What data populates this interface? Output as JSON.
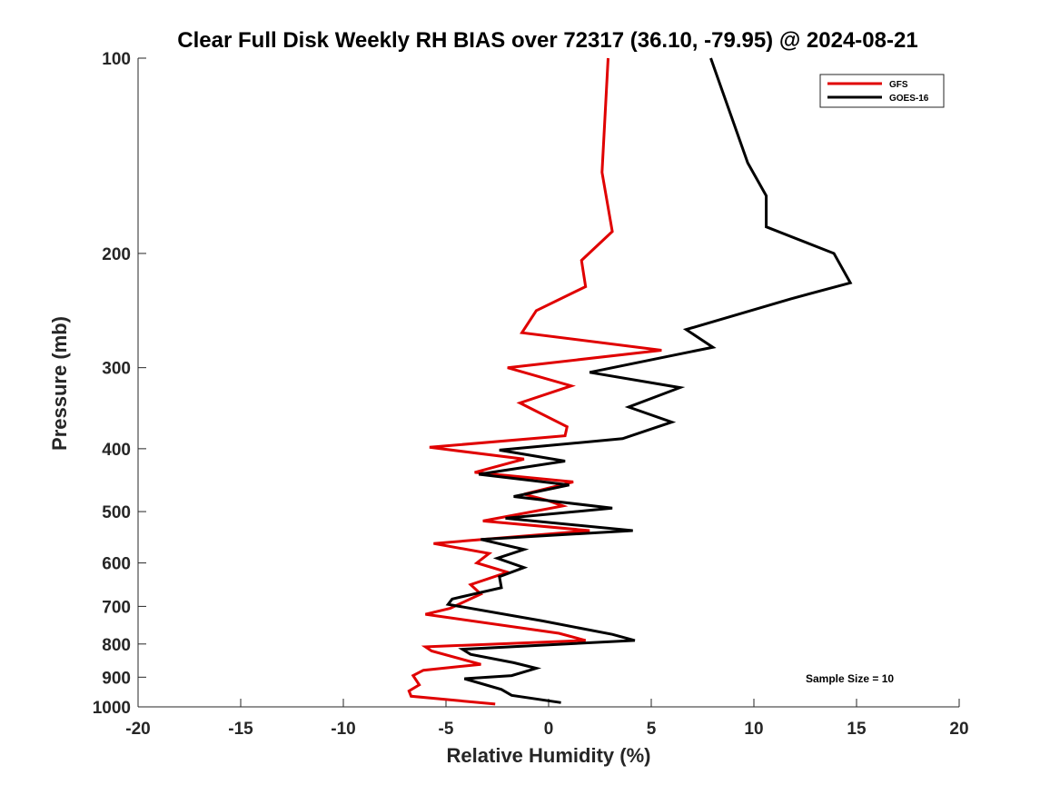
{
  "chart_data": {
    "type": "line",
    "title": "Clear Full Disk Weekly RH BIAS over 72317 (36.10, -79.95) @ 2024-08-21",
    "xlabel": "Relative Humidity (%)",
    "ylabel": "Pressure (mb)",
    "xlim": [
      -20,
      20
    ],
    "ylim": [
      100,
      1000
    ],
    "y_scale": "log",
    "y_reversed": true,
    "xticks": [
      -20,
      -15,
      -10,
      -5,
      0,
      5,
      10,
      15,
      20
    ],
    "yticks": [
      100,
      200,
      300,
      400,
      500,
      600,
      700,
      800,
      900,
      1000
    ],
    "grid": false,
    "legend": {
      "position": "top-right"
    },
    "annotation": "Sample Size = 10",
    "series": [
      {
        "name": "GFS",
        "color": "#e00000",
        "points": [
          [
            2.9,
            100
          ],
          [
            2.6,
            150
          ],
          [
            3.1,
            185
          ],
          [
            1.6,
            205
          ],
          [
            1.8,
            225
          ],
          [
            -0.6,
            245
          ],
          [
            -1.3,
            265
          ],
          [
            5.5,
            282
          ],
          [
            -2.0,
            300
          ],
          [
            1.1,
            320
          ],
          [
            -1.4,
            340
          ],
          [
            0.9,
            370
          ],
          [
            0.8,
            382
          ],
          [
            -5.8,
            398
          ],
          [
            -1.2,
            415
          ],
          [
            -3.6,
            435
          ],
          [
            1.2,
            450
          ],
          [
            -1.2,
            470
          ],
          [
            -0.1,
            480
          ],
          [
            0.7,
            490
          ],
          [
            -3.2,
            517
          ],
          [
            2.0,
            535
          ],
          [
            -5.6,
            560
          ],
          [
            -2.9,
            580
          ],
          [
            -3.5,
            600
          ],
          [
            -2.0,
            620
          ],
          [
            -3.8,
            648
          ],
          [
            -3.3,
            670
          ],
          [
            -4.8,
            705
          ],
          [
            -6.0,
            720
          ],
          [
            0.5,
            770
          ],
          [
            1.8,
            790
          ],
          [
            -6.0,
            808
          ],
          [
            -5.7,
            820
          ],
          [
            -3.3,
            860
          ],
          [
            -6.1,
            878
          ],
          [
            -6.6,
            895
          ],
          [
            -6.3,
            925
          ],
          [
            -6.8,
            945
          ],
          [
            -6.7,
            963
          ],
          [
            -2.6,
            990
          ]
        ]
      },
      {
        "name": "GOES-16",
        "color": "#000000",
        "points": [
          [
            7.9,
            100
          ],
          [
            9.7,
            145
          ],
          [
            10.6,
            163
          ],
          [
            10.6,
            182
          ],
          [
            13.9,
            200
          ],
          [
            14.7,
            222
          ],
          [
            11.8,
            235
          ],
          [
            6.7,
            262
          ],
          [
            8.0,
            279
          ],
          [
            2.0,
            305
          ],
          [
            6.4,
            322
          ],
          [
            3.9,
            345
          ],
          [
            6.0,
            364
          ],
          [
            3.6,
            386
          ],
          [
            -2.4,
            402
          ],
          [
            0.8,
            418
          ],
          [
            -3.4,
            438
          ],
          [
            1.0,
            455
          ],
          [
            -1.7,
            474
          ],
          [
            3.1,
            494
          ],
          [
            -2.1,
            512
          ],
          [
            4.1,
            535
          ],
          [
            -3.3,
            552
          ],
          [
            -1.2,
            572
          ],
          [
            -2.5,
            590
          ],
          [
            -1.2,
            610
          ],
          [
            -2.4,
            630
          ],
          [
            -2.3,
            655
          ],
          [
            -4.7,
            682
          ],
          [
            -4.9,
            695
          ],
          [
            -0.3,
            737
          ],
          [
            3.1,
            773
          ],
          [
            4.2,
            790
          ],
          [
            -4.2,
            815
          ],
          [
            -3.8,
            830
          ],
          [
            -1.7,
            855
          ],
          [
            -0.6,
            872
          ],
          [
            -1.8,
            895
          ],
          [
            -4.1,
            905
          ],
          [
            -2.3,
            940
          ],
          [
            -1.8,
            960
          ],
          [
            0.6,
            985
          ]
        ]
      }
    ]
  }
}
